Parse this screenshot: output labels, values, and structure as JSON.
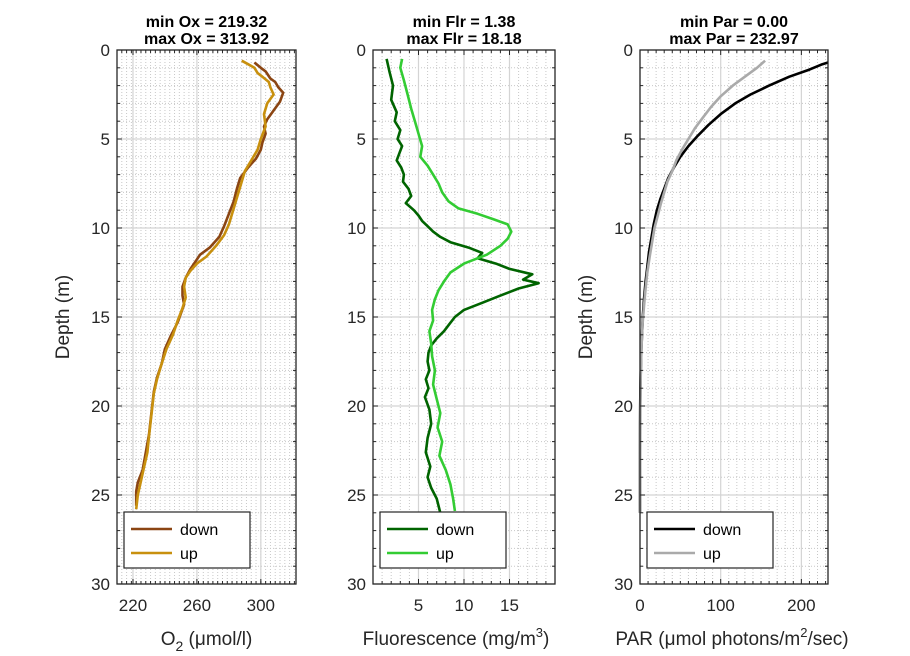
{
  "chart_data": [
    {
      "type": "line",
      "title": [
        "min Ox = 219.32",
        "max Ox = 313.92"
      ],
      "xlabel_main": "O",
      "xlabel_sub": "2",
      "xlabel_rest": " (μmol/l)",
      "ylabel": "Depth (m)",
      "xlim": [
        210,
        322
      ],
      "ylim": [
        0,
        30
      ],
      "y_reversed": true,
      "xticks": [
        220,
        260,
        300
      ],
      "yticks": [
        0,
        5,
        10,
        15,
        20,
        25,
        30
      ],
      "legend_position": "bottom-left",
      "series": [
        {
          "name": "down",
          "color": "#8B4513",
          "x": [
            296,
            300,
            303,
            306,
            309,
            311,
            314,
            312,
            308,
            304,
            302,
            303,
            301,
            300,
            297,
            292,
            287,
            285,
            283,
            280,
            277,
            274,
            268,
            262,
            259,
            256,
            253,
            251,
            251,
            252,
            250,
            248,
            244,
            240,
            238,
            235,
            233,
            232,
            231,
            230,
            228,
            226,
            223,
            222,
            222
          ],
          "y": [
            0.7,
            1.0,
            1.2,
            1.6,
            1.8,
            2.1,
            2.4,
            2.9,
            3.4,
            3.9,
            4.3,
            4.7,
            5.2,
            5.6,
            6.1,
            6.6,
            7.2,
            7.8,
            8.5,
            9.2,
            9.9,
            10.5,
            11.1,
            11.5,
            11.9,
            12.3,
            12.8,
            13.3,
            13.8,
            14.3,
            14.8,
            15.3,
            16.0,
            16.8,
            17.6,
            18.4,
            19.2,
            20.0,
            20.8,
            21.6,
            22.6,
            23.6,
            24.3,
            24.8,
            25.6
          ]
        },
        {
          "name": "up",
          "color": "#C8900E",
          "x": [
            288,
            292,
            296,
            298,
            301,
            305,
            306,
            308,
            304,
            302,
            303,
            300,
            298,
            294,
            290,
            288,
            286,
            284,
            282,
            280,
            277,
            272,
            266,
            260,
            256,
            253,
            252,
            253,
            251,
            248,
            245,
            241,
            238,
            235,
            233,
            232,
            231,
            230,
            229,
            227,
            225,
            223,
            222
          ],
          "y": [
            0.6,
            0.8,
            1.0,
            1.3,
            1.5,
            1.8,
            2.1,
            2.5,
            3.0,
            3.6,
            4.3,
            5.0,
            5.6,
            6.2,
            6.8,
            7.4,
            8.0,
            8.6,
            9.2,
            9.8,
            10.4,
            11.0,
            11.6,
            12.0,
            12.4,
            12.8,
            13.3,
            13.9,
            14.5,
            15.2,
            16.0,
            16.8,
            17.6,
            18.5,
            19.3,
            20.1,
            20.9,
            21.7,
            22.6,
            23.4,
            24.2,
            25.0,
            25.8
          ]
        }
      ]
    },
    {
      "type": "line",
      "title": [
        "min Flr = 1.38",
        "max Flr = 18.18"
      ],
      "xlabel_main": "Fluorescence (mg/m",
      "xlabel_sup": "3",
      "xlabel_rest": ")",
      "ylabel": "",
      "xlim": [
        0,
        20
      ],
      "ylim": [
        0,
        30
      ],
      "y_reversed": true,
      "xticks": [
        5,
        10,
        15
      ],
      "yticks": [
        0,
        5,
        10,
        15,
        20,
        25,
        30
      ],
      "legend_position": "bottom-left",
      "series": [
        {
          "name": "down",
          "color": "#006400",
          "x": [
            1.5,
            1.8,
            2.2,
            2.0,
            2.6,
            2.4,
            3.0,
            2.7,
            3.2,
            2.9,
            2.6,
            3.1,
            3.4,
            3.3,
            3.9,
            4.2,
            3.6,
            4.5,
            5.0,
            5.4,
            6.0,
            6.6,
            7.4,
            8.5,
            10.5,
            12.0,
            11.5,
            13.5,
            15.0,
            17.5,
            16.5,
            18.2,
            16.0,
            14.0,
            12.0,
            10.0,
            9.0,
            8.4,
            7.8,
            7.0,
            6.4,
            6.1,
            6.0,
            6.2,
            5.8,
            6.1,
            5.7,
            6.2,
            6.4,
            6.0,
            5.8,
            6.3,
            6.0,
            6.4,
            7.0,
            7.4
          ],
          "y": [
            0.5,
            1.2,
            2.0,
            2.8,
            3.5,
            4.0,
            4.5,
            5.0,
            5.4,
            5.8,
            6.2,
            6.6,
            7.0,
            7.4,
            7.8,
            8.2,
            8.6,
            9.0,
            9.3,
            9.6,
            9.9,
            10.2,
            10.5,
            10.8,
            11.1,
            11.4,
            11.7,
            12.0,
            12.3,
            12.6,
            12.9,
            13.1,
            13.4,
            13.8,
            14.2,
            14.6,
            15.0,
            15.4,
            15.8,
            16.2,
            16.6,
            17.0,
            17.5,
            18.0,
            18.5,
            19.0,
            19.5,
            20.2,
            21.0,
            21.8,
            22.6,
            23.4,
            24.0,
            24.6,
            25.2,
            26.0
          ]
        },
        {
          "name": "up",
          "color": "#33CC33",
          "x": [
            3.2,
            3.0,
            3.4,
            3.8,
            4.2,
            4.6,
            5.0,
            5.4,
            5.2,
            6.0,
            6.6,
            7.2,
            7.6,
            8.3,
            9.4,
            11.5,
            13.2,
            14.8,
            15.2,
            14.8,
            14.0,
            12.5,
            10.0,
            8.5,
            7.8,
            7.2,
            6.8,
            6.5,
            6.6,
            6.2,
            6.4,
            6.5,
            6.8,
            6.6,
            7.0,
            7.4,
            7.1,
            7.6,
            7.3,
            8.0,
            8.5,
            8.8,
            9.0
          ],
          "y": [
            0.5,
            1.0,
            1.7,
            2.5,
            3.3,
            4.0,
            4.7,
            5.4,
            6.0,
            6.5,
            7.0,
            7.5,
            8.0,
            8.5,
            8.9,
            9.2,
            9.5,
            9.8,
            10.2,
            10.6,
            11.0,
            11.5,
            12.0,
            12.5,
            13.0,
            13.5,
            14.0,
            14.6,
            15.2,
            15.8,
            16.5,
            17.2,
            18.0,
            18.8,
            19.6,
            20.4,
            21.2,
            22.0,
            22.8,
            23.6,
            24.4,
            25.2,
            25.9
          ]
        }
      ]
    },
    {
      "type": "line",
      "title": [
        "min Par = 0.00",
        "max Par = 232.97"
      ],
      "xlabel_main": "PAR (μmol photons/m",
      "xlabel_sup": "2",
      "xlabel_rest": "/sec)",
      "ylabel": "Depth (m)",
      "xlim": [
        0,
        233
      ],
      "ylim": [
        0,
        30
      ],
      "y_reversed": true,
      "xticks": [
        0,
        100,
        200
      ],
      "yticks": [
        0,
        5,
        10,
        15,
        20,
        25,
        30
      ],
      "legend_position": "bottom-left",
      "series": [
        {
          "name": "down",
          "color": "#000000",
          "x": [
            233,
            226,
            210,
            185,
            160,
            137,
            118,
            100,
            85,
            72,
            60,
            50,
            42,
            35,
            30,
            25,
            21,
            17,
            14,
            11,
            9,
            7,
            5,
            3.5,
            2.5,
            1.5,
            1,
            0.5,
            0.3,
            0.1,
            0
          ],
          "y": [
            0.7,
            0.8,
            1.1,
            1.5,
            2.0,
            2.5,
            3.0,
            3.6,
            4.2,
            4.8,
            5.4,
            6.0,
            6.6,
            7.2,
            7.8,
            8.4,
            9.0,
            9.8,
            10.6,
            11.4,
            12.2,
            13.0,
            14.0,
            15.0,
            16.0,
            17.0,
            18.0,
            19.0,
            20.0,
            21.0,
            26.0
          ]
        },
        {
          "name": "up",
          "color": "#AAAAAA",
          "x": [
            155,
            145,
            130,
            115,
            100,
            88,
            78,
            68,
            60,
            52,
            45,
            40,
            34,
            30,
            26,
            22,
            18,
            15,
            12,
            9,
            7,
            5,
            3,
            2,
            1,
            0.5,
            0
          ],
          "y": [
            0.6,
            1.0,
            1.5,
            2.0,
            2.6,
            3.2,
            3.8,
            4.4,
            5.0,
            5.6,
            6.2,
            6.8,
            7.4,
            8.0,
            8.6,
            9.3,
            10.0,
            10.8,
            11.6,
            12.5,
            13.4,
            14.4,
            15.5,
            16.6,
            18.0,
            20.0,
            26.0
          ]
        }
      ]
    }
  ]
}
